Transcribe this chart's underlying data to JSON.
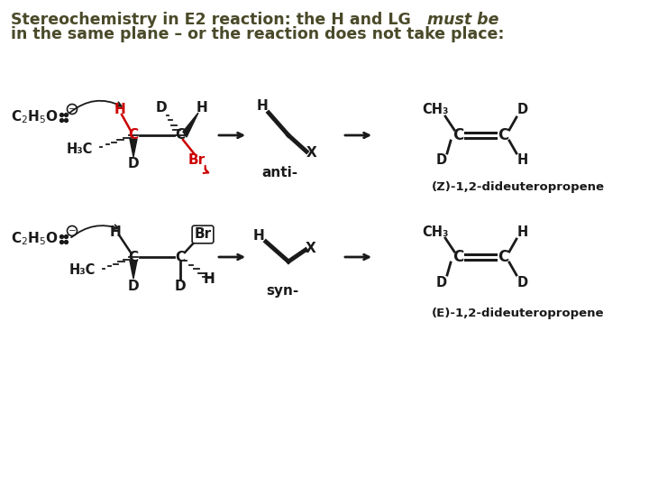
{
  "bg_color": "#ffffff",
  "text_color": "#4a4a2a",
  "dark_color": "#1a1a1a",
  "red_color": "#cc0000",
  "title_part1": "Stereochemistry in E2 reaction: the H and LG ",
  "title_italic": "must be",
  "title_line2": "in the same plane – or the reaction does not take place:"
}
